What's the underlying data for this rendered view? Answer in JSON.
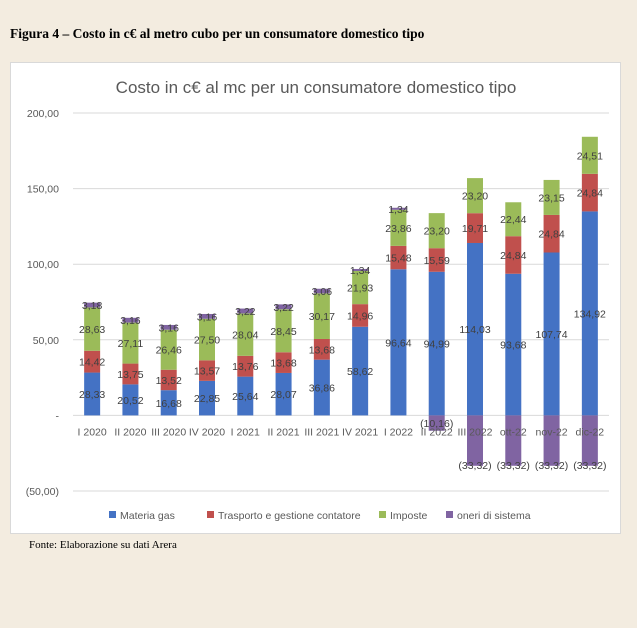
{
  "figure_caption": "Figura 4 – Costo in c€ al metro cubo per un consumatore domestico tipo",
  "source_note": "Fonte: Elaborazione su dati Arera",
  "chart_data": {
    "type": "bar",
    "stacked": true,
    "title": "Costo in c€ al mc per un consumatore domestico tipo",
    "xlabel": "",
    "ylabel": "",
    "ylim": [
      -50,
      200
    ],
    "yticks": [
      -50,
      0,
      50,
      100,
      150,
      200
    ],
    "ytick_labels": [
      "(50,00)",
      "-",
      "50,00",
      "100,00",
      "150,00",
      "200,00"
    ],
    "grid": true,
    "legend_position": "bottom",
    "categories": [
      "I 2020",
      "II 2020",
      "III 2020",
      "IV 2020",
      "I 2021",
      "II 2021",
      "III 2021",
      "IV 2021",
      "I 2022",
      "II 2022",
      "III 2022",
      "ott-22",
      "nov-22",
      "dic-22"
    ],
    "series": [
      {
        "name": "Materia gas",
        "color": "#4472c4",
        "values": [
          28.33,
          20.52,
          16.68,
          22.85,
          25.64,
          28.07,
          36.86,
          58.62,
          96.64,
          94.99,
          114.03,
          93.68,
          107.74,
          134.92
        ],
        "labels": [
          "28,33",
          "20,52",
          "16,68",
          "22,85",
          "25,64",
          "28,07",
          "36,86",
          "58,62",
          "96,64",
          "94,99",
          "114,03",
          "93,68",
          "107,74",
          "134,92"
        ]
      },
      {
        "name": "Trasporto e gestione contatore",
        "color": "#c0504d",
        "values": [
          14.42,
          13.75,
          13.52,
          13.57,
          13.76,
          13.68,
          13.68,
          14.96,
          15.48,
          15.59,
          19.71,
          24.84,
          24.84,
          24.84
        ],
        "labels": [
          "14,42",
          "13,75",
          "13,52",
          "13,57",
          "13,76",
          "13,68",
          "13,68",
          "14,96",
          "15,48",
          "15,59",
          "19,71",
          "24,84",
          "24,84",
          "24,84"
        ]
      },
      {
        "name": "Imposte",
        "color": "#9bbb59",
        "values": [
          28.63,
          27.11,
          26.46,
          27.5,
          28.04,
          28.45,
          30.17,
          21.93,
          23.86,
          23.2,
          23.2,
          22.44,
          23.15,
          24.51
        ],
        "labels": [
          "28,63",
          "27,11",
          "26,46",
          "27,50",
          "28,04",
          "28,45",
          "30,17",
          "21,93",
          "23,86",
          "23,20",
          "23,20",
          "22,44",
          "23,15",
          "24,51"
        ]
      },
      {
        "name": "oneri di sistema",
        "color": "#8064a2",
        "values": [
          3.18,
          3.16,
          3.16,
          3.16,
          3.22,
          3.22,
          3.06,
          1.34,
          1.34,
          -10.16,
          -33.32,
          -33.32,
          -33.32,
          -33.32
        ],
        "labels": [
          "3,18",
          "3,16",
          "3,16",
          "3,16",
          "3,22",
          "3,22",
          "3,06",
          "1,34",
          "1,34",
          "(10,16)",
          "(33,32)",
          "(33,32)",
          "(33,32)",
          "(33,32)"
        ]
      }
    ]
  }
}
